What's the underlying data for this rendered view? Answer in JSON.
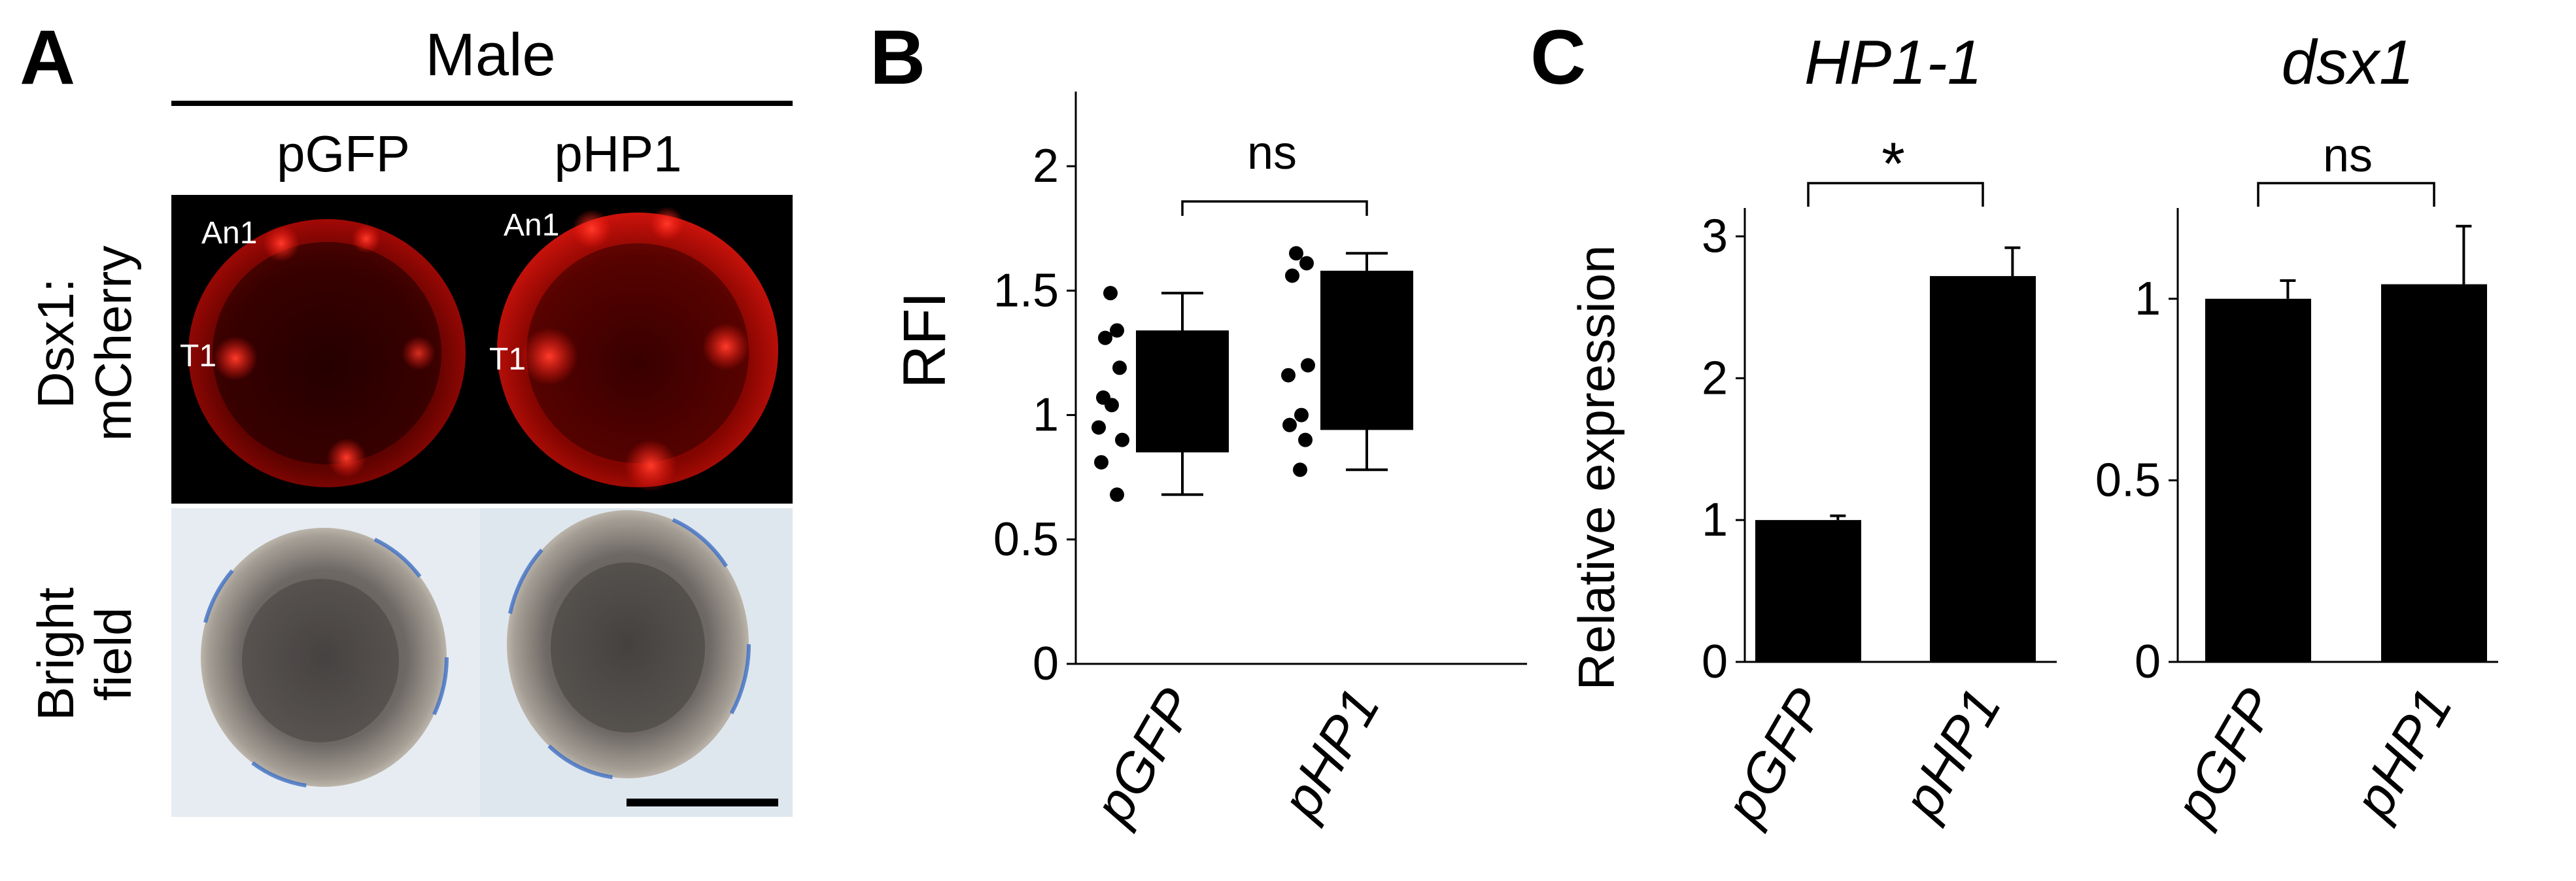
{
  "panelA": {
    "letter": "A",
    "header": "Male",
    "columns": [
      "pGFP",
      "pHP1"
    ],
    "row_labels": [
      {
        "line1": "Dsx1:",
        "line2": "mCherry"
      },
      {
        "line1": "Bright",
        "line2": "field"
      }
    ],
    "image_labels": {
      "antenna": "An1",
      "thorax": "T1"
    }
  },
  "chart_data": [
    {
      "panel": "B",
      "type": "box",
      "ylabel": "RFI",
      "categories": [
        "pGFP",
        "pHP1"
      ],
      "ylim": [
        0,
        2.3
      ],
      "yticks": [
        0,
        0.5,
        1,
        1.5,
        2
      ],
      "ytick_labels": [
        "0",
        "0.5",
        "1",
        "1.5",
        "2"
      ],
      "boxes": [
        {
          "category": "pGFP",
          "q1": 0.85,
          "q3": 1.34,
          "whisker_low": 0.68,
          "whisker_high": 1.49
        },
        {
          "category": "pHP1",
          "q1": 0.94,
          "q3": 1.58,
          "whisker_low": 0.78,
          "whisker_high": 1.65
        }
      ],
      "points": [
        {
          "category": "pGFP",
          "values": [
            1.49,
            1.34,
            1.31,
            1.19,
            1.07,
            1.04,
            0.95,
            0.9,
            0.81,
            0.68
          ]
        },
        {
          "category": "pHP1",
          "values": [
            1.65,
            1.61,
            1.56,
            1.2,
            1.16,
            1.0,
            0.96,
            0.9,
            0.78
          ]
        }
      ],
      "significance": "ns"
    },
    {
      "panel": "C",
      "type": "bar",
      "title": "HP1-1",
      "ylabel": "Relative expression",
      "categories": [
        "pGFP",
        "pHP1"
      ],
      "values": [
        1.0,
        2.72
      ],
      "errors": [
        0.03,
        0.2
      ],
      "ylim": [
        0,
        3.2
      ],
      "yticks": [
        0,
        1,
        2,
        3
      ],
      "ytick_labels": [
        "0",
        "1",
        "2",
        "3"
      ],
      "significance": "*"
    },
    {
      "panel": "C",
      "type": "bar",
      "title": "dsx1",
      "categories": [
        "pGFP",
        "pHP1"
      ],
      "values": [
        1.0,
        1.04
      ],
      "errors": [
        0.05,
        0.16
      ],
      "ylim": [
        0,
        1.25
      ],
      "yticks": [
        0,
        0.5,
        1
      ],
      "ytick_labels": [
        "0",
        "0.5",
        "1"
      ],
      "significance": "ns"
    }
  ],
  "panel_letters": {
    "B": "B",
    "C": "C"
  },
  "colors": {
    "bars": "#000000",
    "fluorescence": "#ff1a10",
    "fluor_bg": "#000000",
    "brightfield_bg": "#e4ebf1"
  }
}
